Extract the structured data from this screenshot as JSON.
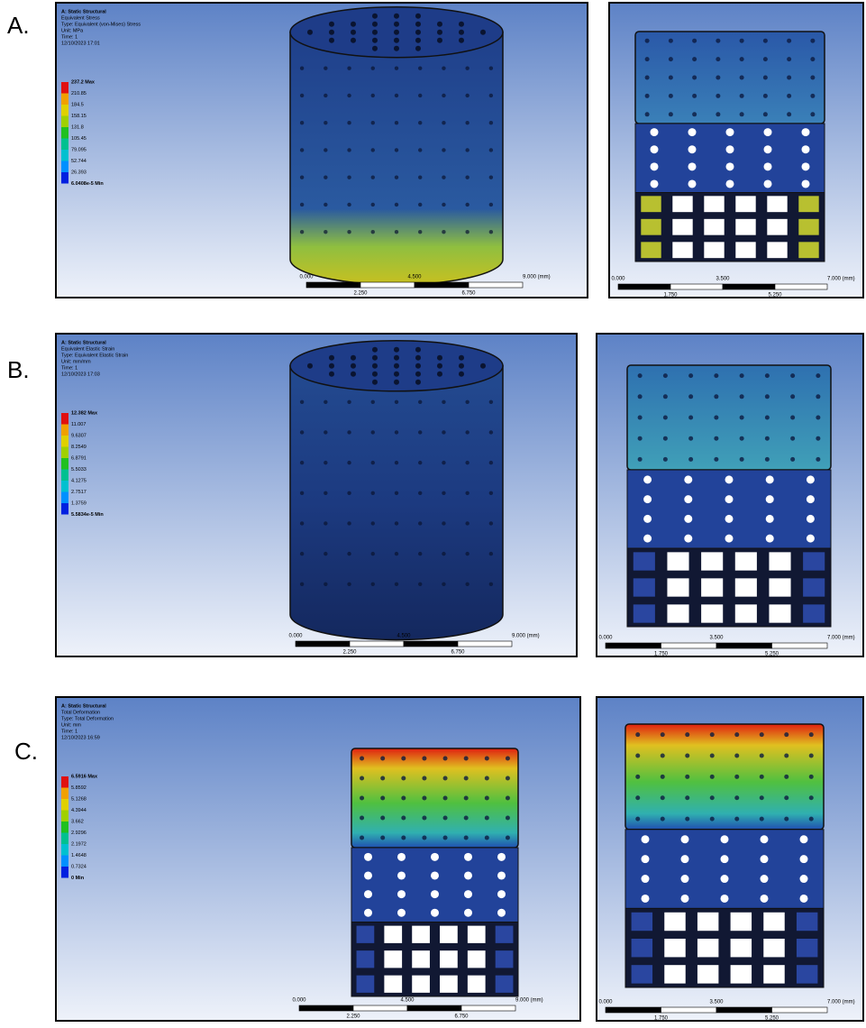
{
  "figure": {
    "panels": [
      {
        "label": "A.",
        "left": {
          "info": [
            "A: Static Structural",
            "Equivalent Stress",
            "Type: Equivalent (von-Mises) Stress",
            "Unit: MPa",
            "Time: 1",
            "12/10/2023 17:01"
          ],
          "legend": [
            "237.2 Max",
            "210.85",
            "184.5",
            "158.15",
            "131.8",
            "105.45",
            "79.095",
            "52.744",
            "26.393",
            "6.0408e-5 Min"
          ],
          "scale_top": [
            "0.000",
            "4.500",
            "9.000 (mm)"
          ],
          "scale_bottom": [
            "2.250",
            "6.750"
          ]
        },
        "right": {
          "scale_top": [
            "0.000",
            "3.500",
            "7.000 (mm)"
          ],
          "scale_bottom": [
            "1.750",
            "5.250"
          ]
        }
      },
      {
        "label": "B.",
        "left": {
          "info": [
            "A: Static Structural",
            "Equivalent Elastic Strain",
            "Type: Equivalent Elastic Strain",
            "Unit: mm/mm",
            "Time: 1",
            "12/10/2023 17:03"
          ],
          "legend": [
            "12.382 Max",
            "11.007",
            "9.6307",
            "8.2549",
            "6.8791",
            "5.5033",
            "4.1275",
            "2.7517",
            "1.3759",
            "5.5834e-5 Min"
          ],
          "scale_top": [
            "0.000",
            "4.500",
            "9.000 (mm)"
          ],
          "scale_bottom": [
            "2.250",
            "6.750"
          ]
        },
        "right": {
          "scale_top": [
            "0.000",
            "3.500",
            "7.000 (mm)"
          ],
          "scale_bottom": [
            "1.750",
            "5.250"
          ]
        }
      },
      {
        "label": "C.",
        "left": {
          "info": [
            "A: Static Structural",
            "Total Deformation",
            "Type: Total Deformation",
            "Unit: mm",
            "Time: 1",
            "12/10/2023 16:59"
          ],
          "legend": [
            "6.5916 Max",
            "5.8592",
            "5.1268",
            "4.3944",
            "3.662",
            "2.9296",
            "2.1972",
            "1.4648",
            "0.7324",
            "0 Min"
          ],
          "scale_top": [
            "0.000",
            "4.500",
            "9.000 (mm)"
          ],
          "scale_bottom": [
            "2.250",
            "6.750"
          ]
        },
        "right": {
          "scale_top": [
            "0.000",
            "3.500",
            "7.000 (mm)"
          ],
          "scale_bottom": [
            "1.750",
            "5.250"
          ]
        }
      }
    ]
  }
}
